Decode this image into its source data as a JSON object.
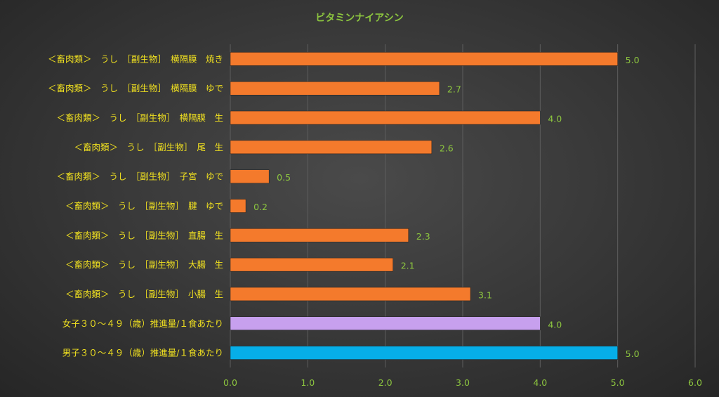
{
  "chart_data": {
    "type": "bar",
    "orientation": "horizontal",
    "title": "ビタミンナイアシン",
    "categories": [
      "＜畜肉類＞　うし　［副生物］　横隔膜　焼き",
      "＜畜肉類＞　うし　［副生物］　横隔膜　ゆで",
      "＜畜肉類＞　うし　［副生物］　横隔膜　生",
      "＜畜肉類＞　うし　［副生物］　尾　生",
      "＜畜肉類＞　うし　［副生物］　子宮　ゆで",
      "＜畜肉類＞　うし　［副生物］　腱　ゆで",
      "＜畜肉類＞　うし　［副生物］　直腸　生",
      "＜畜肉類＞　うし　［副生物］　大腸　生",
      "＜畜肉類＞　うし　［副生物］　小腸　生",
      "女子３０～４９（歳）推進量/１食あたり",
      "男子３０～４９（歳）推進量/１食あたり"
    ],
    "values": [
      5.0,
      2.7,
      4.0,
      2.6,
      0.5,
      0.2,
      2.3,
      2.1,
      3.1,
      4.0,
      5.0
    ],
    "value_labels": [
      "5.0",
      "2.7",
      "4.0",
      "2.6",
      "0.5",
      "0.2",
      "2.3",
      "2.1",
      "3.1",
      "4.0",
      "5.0"
    ],
    "bar_colors": [
      "#f47a2c",
      "#f47a2c",
      "#f47a2c",
      "#f47a2c",
      "#f47a2c",
      "#f47a2c",
      "#f47a2c",
      "#f47a2c",
      "#f47a2c",
      "#c7a0ee",
      "#06aee8"
    ],
    "xlim": [
      0,
      6
    ],
    "x_ticks": [
      "0.0",
      "1.0",
      "2.0",
      "3.0",
      "4.0",
      "5.0",
      "6.0"
    ],
    "grid": true,
    "legend": "none",
    "colors": {
      "title": "#8dc63f",
      "category_labels": "#f0e020",
      "tick_labels": "#8dc63f",
      "data_labels": "#8dc63f",
      "gridlines": "#5e5e5e"
    }
  }
}
